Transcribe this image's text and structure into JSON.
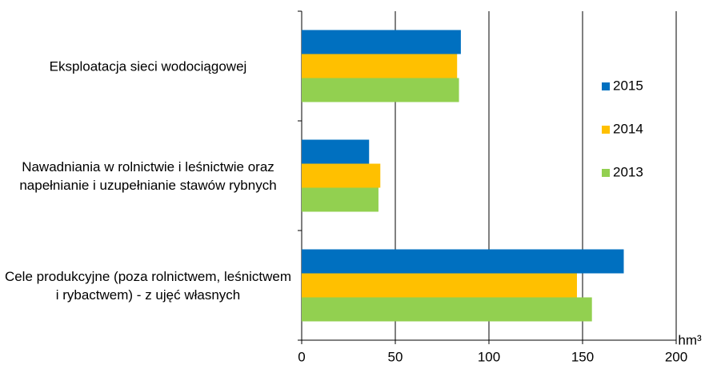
{
  "chart_data": {
    "type": "barh",
    "categories": [
      "Eksploatacja sieci wodociągowej",
      "Nawadniania w rolnictwie i leśnictwie oraz napełnianie i uzupełnianie stawów rybnych",
      "Cele produkcyjne (poza rolnictwem, leśnictwem i rybactwem) - z ujęć własnych"
    ],
    "series": [
      {
        "name": "2015",
        "color": "#0070c0",
        "values": [
          85,
          36,
          172
        ]
      },
      {
        "name": "2014",
        "color": "#ffc000",
        "values": [
          83,
          42,
          147
        ]
      },
      {
        "name": "2013",
        "color": "#92d050",
        "values": [
          84,
          41,
          155
        ]
      }
    ],
    "x_label": "hm³",
    "xlim": [
      0,
      200
    ],
    "xticks": [
      0,
      50,
      100,
      150,
      200
    ],
    "grid": true,
    "legend": "right"
  }
}
